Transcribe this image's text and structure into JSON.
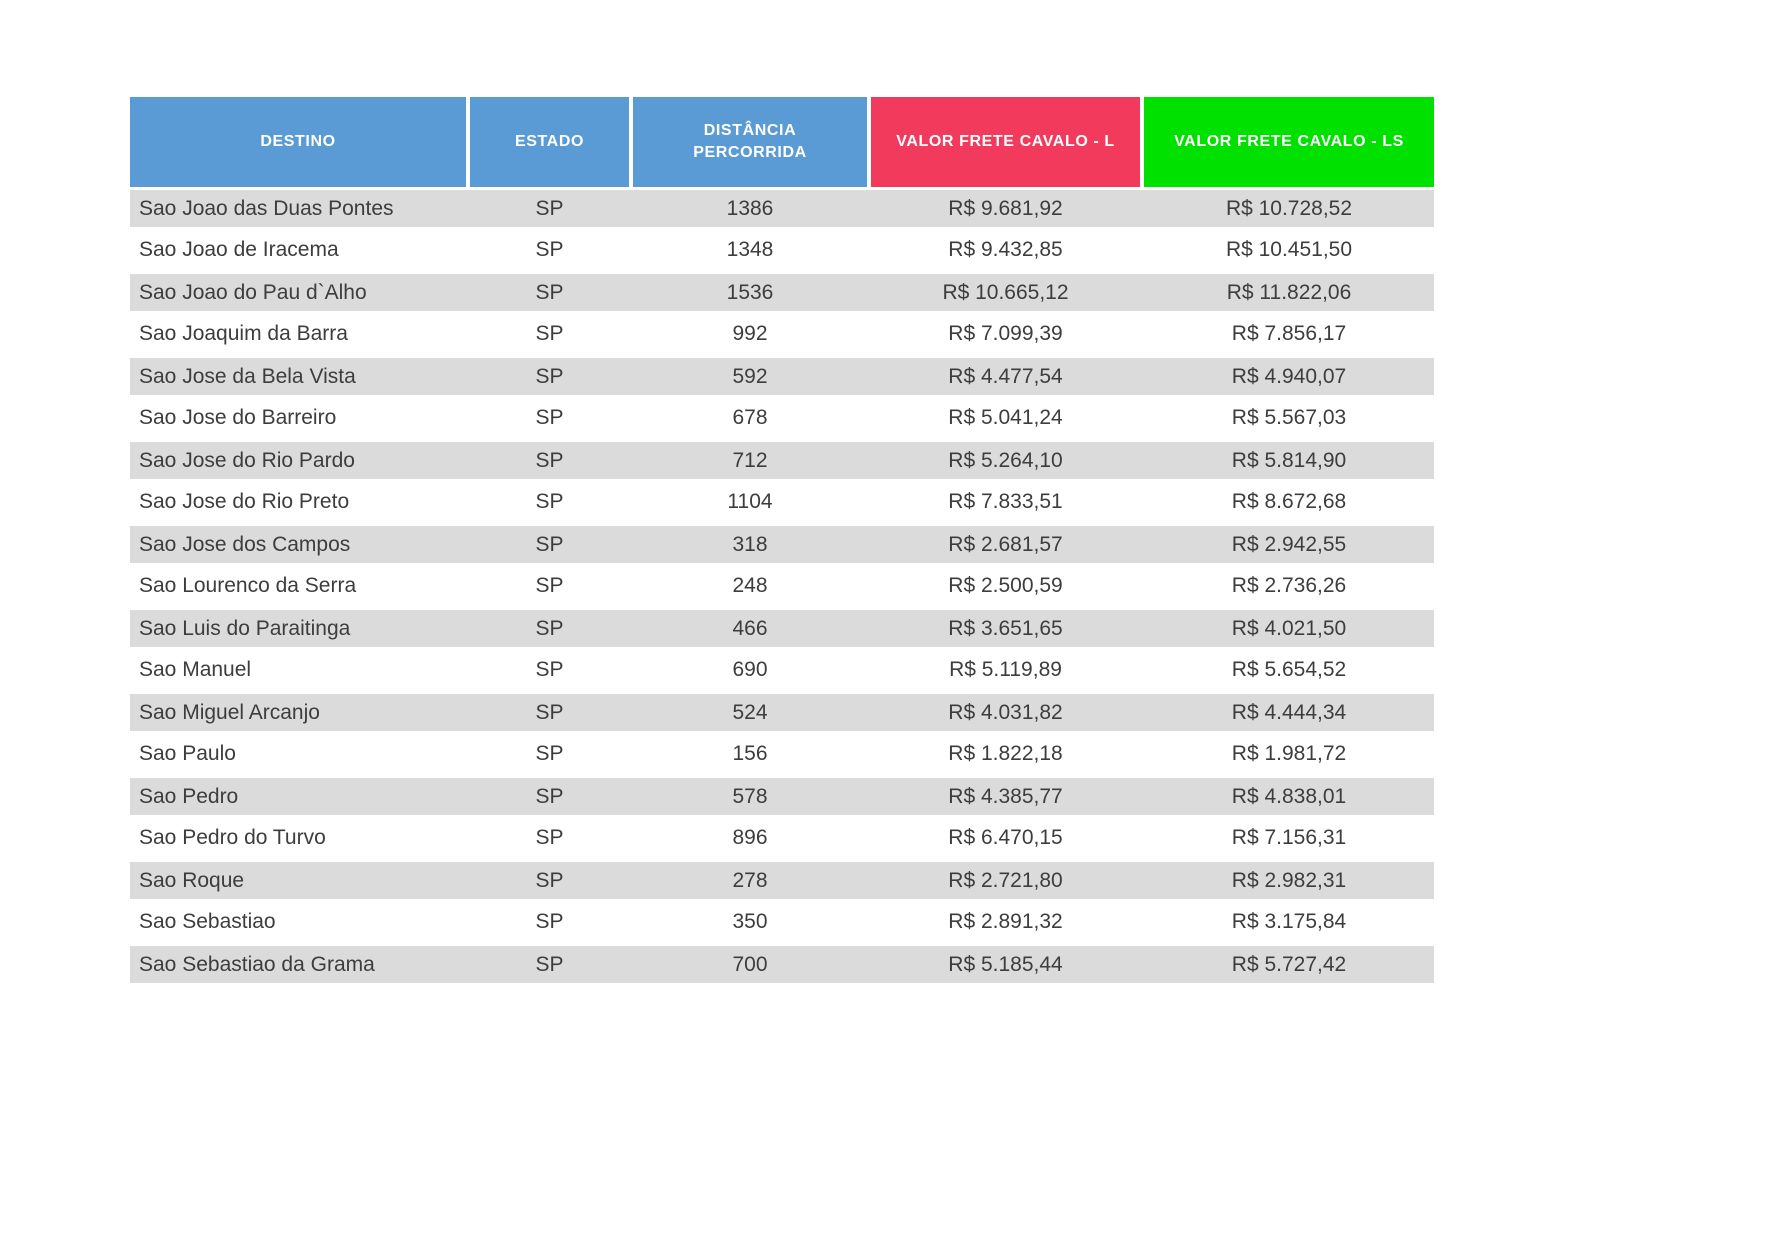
{
  "colors": {
    "header_blue": "#5b9bd5",
    "header_red": "#f23a5d",
    "header_green": "#00e100",
    "row_stripe_gray": "#dbdbdb",
    "row_white": "#ffffff",
    "header_text": "#ffffff",
    "body_text": "#3d3d3d"
  },
  "chart_data": {
    "type": "table",
    "title": "",
    "columns": [
      {
        "label": "DESTINO",
        "color": "#5b9bd5"
      },
      {
        "label": "ESTADO",
        "color": "#5b9bd5"
      },
      {
        "label": "DISTÂNCIA PERCORRIDA",
        "color": "#5b9bd5"
      },
      {
        "label": "VALOR FRETE CAVALO - L",
        "color": "#f23a5d"
      },
      {
        "label": "VALOR FRETE CAVALO - LS",
        "color": "#00e100"
      }
    ],
    "rows": [
      [
        "Sao Joao das Duas Pontes",
        "SP",
        "1386",
        "R$ 9.681,92",
        "R$ 10.728,52"
      ],
      [
        "Sao Joao de Iracema",
        "SP",
        "1348",
        "R$ 9.432,85",
        "R$ 10.451,50"
      ],
      [
        "Sao Joao do Pau d`Alho",
        "SP",
        "1536",
        "R$ 10.665,12",
        "R$ 11.822,06"
      ],
      [
        "Sao Joaquim da Barra",
        "SP",
        "992",
        "R$ 7.099,39",
        "R$ 7.856,17"
      ],
      [
        "Sao Jose da Bela Vista",
        "SP",
        "592",
        "R$ 4.477,54",
        "R$ 4.940,07"
      ],
      [
        "Sao Jose do Barreiro",
        "SP",
        "678",
        "R$ 5.041,24",
        "R$ 5.567,03"
      ],
      [
        "Sao Jose do Rio Pardo",
        "SP",
        "712",
        "R$ 5.264,10",
        "R$ 5.814,90"
      ],
      [
        "Sao Jose do Rio Preto",
        "SP",
        "1104",
        "R$ 7.833,51",
        "R$ 8.672,68"
      ],
      [
        "Sao Jose dos Campos",
        "SP",
        "318",
        "R$ 2.681,57",
        "R$ 2.942,55"
      ],
      [
        "Sao Lourenco da Serra",
        "SP",
        "248",
        "R$ 2.500,59",
        "R$ 2.736,26"
      ],
      [
        "Sao Luis do Paraitinga",
        "SP",
        "466",
        "R$ 3.651,65",
        "R$ 4.021,50"
      ],
      [
        "Sao Manuel",
        "SP",
        "690",
        "R$ 5.119,89",
        "R$ 5.654,52"
      ],
      [
        "Sao Miguel Arcanjo",
        "SP",
        "524",
        "R$ 4.031,82",
        "R$ 4.444,34"
      ],
      [
        "Sao Paulo",
        "SP",
        "156",
        "R$ 1.822,18",
        "R$ 1.981,72"
      ],
      [
        "Sao Pedro",
        "SP",
        "578",
        "R$ 4.385,77",
        "R$ 4.838,01"
      ],
      [
        "Sao Pedro do Turvo",
        "SP",
        "896",
        "R$ 6.470,15",
        "R$ 7.156,31"
      ],
      [
        "Sao Roque",
        "SP",
        "278",
        "R$ 2.721,80",
        "R$ 2.982,31"
      ],
      [
        "Sao Sebastiao",
        "SP",
        "350",
        "R$ 2.891,32",
        "R$ 3.175,84"
      ],
      [
        "Sao Sebastiao da Grama",
        "SP",
        "700",
        "R$ 5.185,44",
        "R$ 5.727,42"
      ]
    ]
  }
}
